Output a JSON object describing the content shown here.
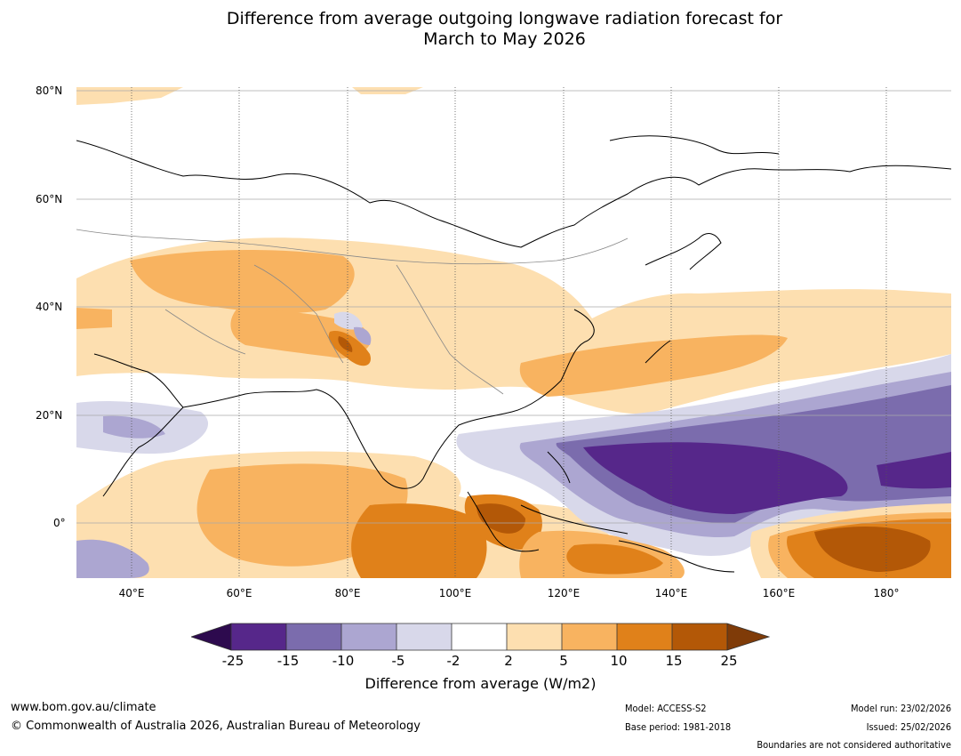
{
  "title": {
    "line1": "Difference from average outgoing longwave radiation forecast for",
    "line2": "March to May 2026"
  },
  "map": {
    "lat_labels": [
      "80°N",
      "60°N",
      "40°N",
      "20°N",
      "0°"
    ],
    "lon_labels": [
      "40°E",
      "60°E",
      "80°E",
      "100°E",
      "120°E",
      "140°E",
      "160°E",
      "180°"
    ]
  },
  "legend": {
    "title": "Difference from average (W/m2)",
    "ticks": [
      "-25",
      "-15",
      "-10",
      "-5",
      "-2",
      "2",
      "5",
      "10",
      "15",
      "25"
    ],
    "colors": {
      "lt_minus25": "#2d0a4e",
      "minus25_minus15": "#56278a",
      "minus15_minus10": "#7b6cad",
      "minus10_minus5": "#aca6d1",
      "minus5_minus2": "#d8d8ea",
      "minus2_2": "#ffffff",
      "p2_5": "#fddfb0",
      "p5_10": "#f8b360",
      "p10_15": "#e0811a",
      "p15_25": "#b35807",
      "gt_25": "#7f3b08"
    }
  },
  "footer": {
    "website": "www.bom.gov.au/climate",
    "copyright": "© Commonwealth of Australia 2026, Australian Bureau of Meteorology",
    "model": "Model: ACCESS-S2",
    "base_period": "Base period: 1981-2018",
    "model_run": "Model run: 23/02/2026",
    "issued": "Issued: 25/02/2026",
    "boundaries": "Boundaries are not considered authoritative"
  }
}
